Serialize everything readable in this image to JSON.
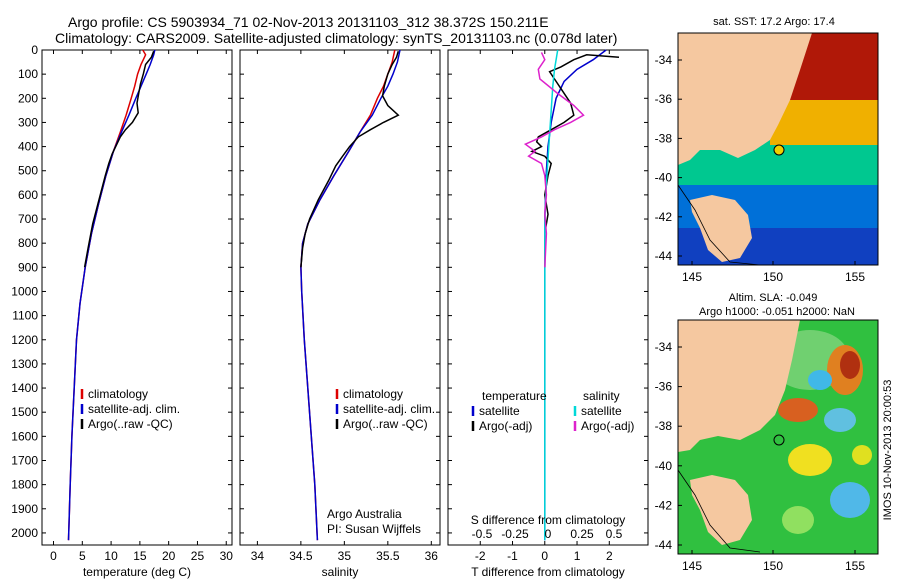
{
  "title": {
    "line1": "Argo profile: CS 5903934_71 02-Nov-2013 20131103_312 38.372S 150.211E",
    "line2": "Climatology: CARS2009. Satellite-adjusted climatology: synTS_20131103.nc (0.078d later)"
  },
  "chart_data": [
    {
      "type": "line",
      "name": "temperature-profile",
      "xlabel": "temperature (deg C)",
      "xlim": [
        -2,
        31
      ],
      "ylim": [
        2050,
        0
      ],
      "xticks": [
        "0",
        "5",
        "10",
        "15",
        "20",
        "25",
        "30"
      ],
      "yticks": [
        "0",
        "100",
        "200",
        "300",
        "400",
        "500",
        "600",
        "700",
        "800",
        "900",
        "1000",
        "1100",
        "1200",
        "1300",
        "1400",
        "1500",
        "1600",
        "1700",
        "1800",
        "1900",
        "2000"
      ],
      "legend": [
        "climatology",
        "satellite-adj. clim.",
        "Argo(..raw -QC)"
      ],
      "series": [
        {
          "name": "climatology",
          "color": "#dd0000",
          "points": [
            [
              15.5,
              0
            ],
            [
              16,
              20
            ],
            [
              15.2,
              60
            ],
            [
              14.6,
              100
            ],
            [
              14.1,
              150
            ],
            [
              13.5,
              200
            ],
            [
              12.6,
              270
            ],
            [
              11.6,
              340
            ],
            [
              10.4,
              420
            ],
            [
              9.1,
              520
            ],
            [
              7.8,
              640
            ],
            [
              6.6,
              760
            ],
            [
              5.5,
              900
            ],
            [
              4.6,
              1050
            ],
            [
              4.0,
              1200
            ],
            [
              3.6,
              1400
            ],
            [
              3.2,
              1600
            ],
            [
              2.9,
              1800
            ],
            [
              2.7,
              1950
            ],
            [
              2.6,
              2030
            ]
          ]
        },
        {
          "name": "satellite-adj. clim.",
          "color": "#0000cc",
          "points": [
            [
              17.6,
              0
            ],
            [
              17.4,
              20
            ],
            [
              16.8,
              60
            ],
            [
              16.1,
              100
            ],
            [
              15.2,
              150
            ],
            [
              14.3,
              200
            ],
            [
              13.1,
              270
            ],
            [
              11.8,
              340
            ],
            [
              10.4,
              420
            ],
            [
              9.1,
              520
            ],
            [
              7.8,
              640
            ],
            [
              6.6,
              760
            ],
            [
              5.5,
              900
            ],
            [
              4.6,
              1050
            ],
            [
              4.0,
              1200
            ],
            [
              3.6,
              1400
            ],
            [
              3.2,
              1600
            ],
            [
              2.9,
              1800
            ],
            [
              2.7,
              1950
            ],
            [
              2.6,
              2030
            ]
          ]
        },
        {
          "name": "Argo(..raw -QC)",
          "color": "#000000",
          "points": [
            [
              17.4,
              5
            ],
            [
              17.0,
              30
            ],
            [
              16.0,
              60
            ],
            [
              15.6,
              100
            ],
            [
              15.1,
              140
            ],
            [
              14.8,
              180
            ],
            [
              14.5,
              220
            ],
            [
              14.7,
              260
            ],
            [
              13.7,
              300
            ],
            [
              12.5,
              330
            ],
            [
              11.6,
              360
            ],
            [
              10.8,
              400
            ],
            [
              10.2,
              430
            ],
            [
              9.6,
              470
            ],
            [
              9.0,
              520
            ],
            [
              7.9,
              620
            ],
            [
              6.8,
              720
            ],
            [
              6.0,
              820
            ],
            [
              5.4,
              900
            ]
          ]
        }
      ]
    },
    {
      "type": "line",
      "name": "salinity-profile",
      "xlabel": "salinity",
      "xlim": [
        33.8,
        36.1
      ],
      "ylim": [
        2050,
        0
      ],
      "xticks": [
        "34",
        "34.5",
        "35",
        "35.5",
        "36"
      ],
      "legend": [
        "climatology",
        "satellite-adj. clim.",
        "Argo(..raw -QC)"
      ],
      "annotation": [
        "Argo Australia",
        "PI: Susan Wijffels"
      ],
      "series": [
        {
          "name": "climatology",
          "color": "#dd0000",
          "points": [
            [
              35.58,
              0
            ],
            [
              35.55,
              50
            ],
            [
              35.5,
              100
            ],
            [
              35.45,
              150
            ],
            [
              35.38,
              200
            ],
            [
              35.3,
              270
            ],
            [
              35.18,
              340
            ],
            [
              35.05,
              420
            ],
            [
              34.88,
              520
            ],
            [
              34.72,
              620
            ],
            [
              34.58,
              720
            ],
            [
              34.52,
              800
            ],
            [
              34.5,
              900
            ],
            [
              34.51,
              1000
            ],
            [
              34.54,
              1200
            ],
            [
              34.58,
              1400
            ],
            [
              34.62,
              1600
            ],
            [
              34.66,
              1800
            ],
            [
              34.68,
              1950
            ],
            [
              34.69,
              2030
            ]
          ]
        },
        {
          "name": "satellite-adj. clim.",
          "color": "#0000cc",
          "points": [
            [
              35.64,
              0
            ],
            [
              35.61,
              50
            ],
            [
              35.56,
              100
            ],
            [
              35.5,
              150
            ],
            [
              35.42,
              200
            ],
            [
              35.32,
              270
            ],
            [
              35.18,
              340
            ],
            [
              35.05,
              420
            ],
            [
              34.88,
              520
            ],
            [
              34.72,
              620
            ],
            [
              34.58,
              720
            ],
            [
              34.52,
              800
            ],
            [
              34.5,
              900
            ],
            [
              34.51,
              1000
            ],
            [
              34.54,
              1200
            ],
            [
              34.58,
              1400
            ],
            [
              34.62,
              1600
            ],
            [
              34.66,
              1800
            ],
            [
              34.68,
              1950
            ],
            [
              34.69,
              2030
            ]
          ]
        },
        {
          "name": "Argo(..raw -QC)",
          "color": "#000000",
          "points": [
            [
              35.62,
              5
            ],
            [
              35.6,
              30
            ],
            [
              35.55,
              60
            ],
            [
              35.5,
              100
            ],
            [
              35.46,
              150
            ],
            [
              35.44,
              190
            ],
            [
              35.5,
              230
            ],
            [
              35.62,
              270
            ],
            [
              35.45,
              300
            ],
            [
              35.3,
              330
            ],
            [
              35.16,
              360
            ],
            [
              35.06,
              400
            ],
            [
              34.98,
              440
            ],
            [
              34.9,
              480
            ],
            [
              34.82,
              540
            ],
            [
              34.7,
              620
            ],
            [
              34.6,
              700
            ],
            [
              34.55,
              760
            ],
            [
              34.52,
              820
            ],
            [
              34.5,
              900
            ]
          ]
        }
      ]
    },
    {
      "type": "line",
      "name": "difference-profile",
      "xlabel": "T difference from climatology",
      "xlabel_top": "S difference from climatology",
      "xlim": [
        -3,
        3.2
      ],
      "ylim": [
        2050,
        0
      ],
      "xticks": [
        "-2",
        "-1",
        "0",
        "1",
        "2"
      ],
      "sticks": [
        "-0.5",
        "-0.25",
        "0",
        "0.25",
        "0.5"
      ],
      "legend_headers": [
        "temperature",
        "salinity"
      ],
      "legend": [
        "satellite",
        "Argo(-adj)",
        "satellite",
        "Argo(-adj)"
      ],
      "series": [
        {
          "name": "temperature satellite",
          "color": "#0000cc",
          "points": [
            [
              1.9,
              0
            ],
            [
              1.5,
              40
            ],
            [
              1.0,
              80
            ],
            [
              0.6,
              130
            ],
            [
              0.35,
              200
            ],
            [
              0.2,
              300
            ],
            [
              0.1,
              400
            ],
            [
              0.05,
              500
            ],
            [
              0,
              700
            ],
            [
              0,
              900
            ],
            [
              0,
              1100
            ],
            [
              0,
              1400
            ],
            [
              0,
              1700
            ],
            [
              0,
              2030
            ]
          ]
        },
        {
          "name": "temperature Argo(-adj)",
          "color": "#000000",
          "points": [
            [
              2.3,
              30
            ],
            [
              1.3,
              20
            ],
            [
              0.9,
              40
            ],
            [
              0.5,
              70
            ],
            [
              0.15,
              90
            ],
            [
              0.3,
              120
            ],
            [
              0.5,
              160
            ],
            [
              0.8,
              220
            ],
            [
              0.9,
              270
            ],
            [
              0.6,
              300
            ],
            [
              0.2,
              330
            ],
            [
              -0.2,
              360
            ],
            [
              -0.25,
              380
            ],
            [
              -0.1,
              400
            ],
            [
              -0.4,
              420
            ],
            [
              0.0,
              440
            ],
            [
              0.2,
              470
            ],
            [
              0.1,
              520
            ],
            [
              0.0,
              600
            ],
            [
              0.1,
              680
            ],
            [
              0,
              760
            ],
            [
              0,
              900
            ]
          ]
        },
        {
          "name": "salinity satellite",
          "color": "#00d8d8",
          "points": [
            [
              0.4,
              0
            ],
            [
              0.35,
              40
            ],
            [
              0.3,
              80
            ],
            [
              0.25,
              150
            ],
            [
              0.2,
              250
            ],
            [
              0.15,
              350
            ],
            [
              0.1,
              450
            ],
            [
              0.05,
              550
            ],
            [
              0,
              700
            ],
            [
              0,
              1000
            ],
            [
              0,
              1400
            ],
            [
              0,
              1800
            ],
            [
              0,
              2030
            ]
          ]
        },
        {
          "name": "salinity Argo(-adj)",
          "color": "#dd22cc",
          "points": [
            [
              -0.1,
              10
            ],
            [
              0.0,
              40
            ],
            [
              -0.2,
              80
            ],
            [
              -0.15,
              120
            ],
            [
              0.4,
              180
            ],
            [
              0.9,
              230
            ],
            [
              1.2,
              270
            ],
            [
              0.8,
              300
            ],
            [
              0.3,
              330
            ],
            [
              -0.1,
              360
            ],
            [
              -0.6,
              390
            ],
            [
              -0.3,
              420
            ],
            [
              -0.5,
              440
            ],
            [
              -0.1,
              470
            ],
            [
              0.0,
              520
            ],
            [
              0.05,
              600
            ],
            [
              0.0,
              680
            ],
            [
              0.05,
              760
            ],
            [
              0,
              900
            ]
          ]
        }
      ]
    },
    {
      "type": "heatmap",
      "name": "sst-map",
      "title": "sat. SST: 17.2 Argo: 17.4",
      "xticks": [
        "145",
        "150",
        "155"
      ],
      "yticks": [
        "-34",
        "-36",
        "-38",
        "-40",
        "-42",
        "-44"
      ]
    },
    {
      "type": "heatmap",
      "name": "sla-map",
      "title_line1": "Altim. SLA: -0.049",
      "title_line2": "Argo h1000: -0.051 h2000: NaN",
      "xticks": [
        "145",
        "150",
        "155"
      ],
      "yticks": [
        "-34",
        "-36",
        "-38",
        "-40",
        "-42",
        "-44"
      ]
    }
  ],
  "colors": {
    "climatology": "#dd0000",
    "satellite": "#0000cc",
    "argo": "#000000",
    "sal_sat": "#00d8d8",
    "sal_argo": "#dd22cc",
    "land": "#f5c8a0"
  },
  "footer": "IMOS 10-Nov-2013 20:00:53"
}
